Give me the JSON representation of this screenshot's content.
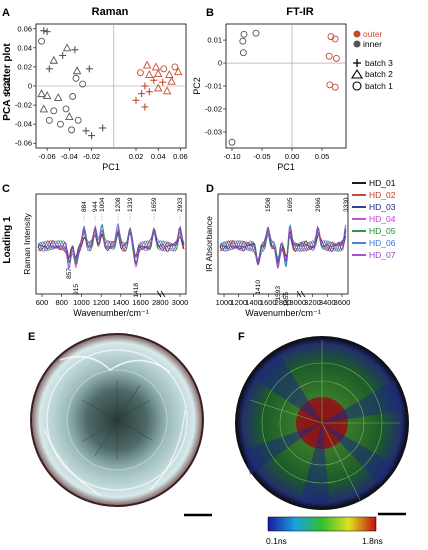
{
  "panels": {
    "A": "A",
    "B": "B",
    "C": "C",
    "D": "D",
    "E": "E",
    "F": "F"
  },
  "titles": {
    "raman": "Raman",
    "ftir": "FT-IR"
  },
  "row_labels": {
    "pca": "PCA scatter plot",
    "loading": "Loading 1"
  },
  "legend_pca": {
    "outer": "outer",
    "inner": "inner",
    "batch3": "batch 3",
    "batch2": "batch 2",
    "batch1": "batch 1",
    "outer_color": "#c8492e",
    "inner_color": "#555555"
  },
  "legend_lines": [
    {
      "name": "HD_01",
      "color": "#000000"
    },
    {
      "name": "HD_02",
      "color": "#c0392b"
    },
    {
      "name": "HD_03",
      "color": "#1f2a8a"
    },
    {
      "name": "HD_04",
      "color": "#c13cd8"
    },
    {
      "name": "HD_05",
      "color": "#1e8c2a"
    },
    {
      "name": "HD_06",
      "color": "#3a6fd8"
    },
    {
      "name": "HD_07",
      "color": "#9a3ec9"
    }
  ],
  "colorbar": {
    "min": "0.1ns",
    "max": "1.8ns"
  },
  "chart_data": [
    {
      "id": "A",
      "type": "scatter",
      "xlabel": "PC1",
      "ylabel": "PC2",
      "xlim": [
        -0.07,
        0.065
      ],
      "ylim": [
        -0.065,
        0.065
      ],
      "xticks": [
        "-0.06",
        "-0.04",
        "-0.02",
        "0.02",
        "0.04",
        "0.06"
      ],
      "yticks": [
        "0.06",
        "0.04",
        "0.02",
        "0",
        "-0.02",
        "-0.04",
        "-0.06"
      ],
      "xtick_values": [
        -0.06,
        -0.04,
        -0.02,
        0.02,
        0.04,
        0.06
      ],
      "ytick_values": [
        0.06,
        0.04,
        0.02,
        0,
        -0.02,
        -0.04,
        -0.06
      ],
      "points": [
        {
          "x": -0.063,
          "y": 0.058,
          "s": "plus",
          "c": "inner"
        },
        {
          "x": -0.06,
          "y": 0.057,
          "s": "plus",
          "c": "inner"
        },
        {
          "x": -0.065,
          "y": 0.047,
          "s": "circle",
          "c": "inner"
        },
        {
          "x": -0.042,
          "y": 0.04,
          "s": "tri",
          "c": "inner"
        },
        {
          "x": -0.046,
          "y": 0.032,
          "s": "plus",
          "c": "inner"
        },
        {
          "x": -0.035,
          "y": 0.038,
          "s": "plus",
          "c": "inner"
        },
        {
          "x": -0.054,
          "y": 0.027,
          "s": "tri",
          "c": "inner"
        },
        {
          "x": -0.058,
          "y": 0.018,
          "s": "plus",
          "c": "inner"
        },
        {
          "x": -0.022,
          "y": 0.018,
          "s": "plus",
          "c": "inner"
        },
        {
          "x": -0.033,
          "y": 0.016,
          "s": "tri",
          "c": "inner"
        },
        {
          "x": -0.034,
          "y": 0.008,
          "s": "circle",
          "c": "inner"
        },
        {
          "x": -0.028,
          "y": 0.002,
          "s": "circle",
          "c": "inner"
        },
        {
          "x": -0.065,
          "y": -0.008,
          "s": "tri",
          "c": "inner"
        },
        {
          "x": -0.06,
          "y": -0.01,
          "s": "tri",
          "c": "inner"
        },
        {
          "x": -0.05,
          "y": -0.012,
          "s": "tri",
          "c": "inner"
        },
        {
          "x": -0.037,
          "y": -0.011,
          "s": "circle",
          "c": "inner"
        },
        {
          "x": -0.063,
          "y": -0.024,
          "s": "tri",
          "c": "inner"
        },
        {
          "x": -0.054,
          "y": -0.026,
          "s": "circle",
          "c": "inner"
        },
        {
          "x": -0.043,
          "y": -0.024,
          "s": "circle",
          "c": "inner"
        },
        {
          "x": -0.04,
          "y": -0.032,
          "s": "tri",
          "c": "inner"
        },
        {
          "x": -0.058,
          "y": -0.036,
          "s": "circle",
          "c": "inner"
        },
        {
          "x": -0.048,
          "y": -0.04,
          "s": "circle",
          "c": "inner"
        },
        {
          "x": -0.032,
          "y": -0.036,
          "s": "circle",
          "c": "inner"
        },
        {
          "x": -0.025,
          "y": -0.047,
          "s": "plus",
          "c": "inner"
        },
        {
          "x": -0.02,
          "y": -0.052,
          "s": "plus",
          "c": "inner"
        },
        {
          "x": -0.01,
          "y": -0.044,
          "s": "plus",
          "c": "inner"
        },
        {
          "x": -0.038,
          "y": -0.046,
          "s": "circle",
          "c": "inner"
        },
        {
          "x": 0.03,
          "y": 0.022,
          "s": "tri",
          "c": "outer"
        },
        {
          "x": 0.038,
          "y": 0.02,
          "s": "tri",
          "c": "outer"
        },
        {
          "x": 0.045,
          "y": 0.018,
          "s": "circle",
          "c": "outer"
        },
        {
          "x": 0.055,
          "y": 0.02,
          "s": "circle",
          "c": "outer"
        },
        {
          "x": 0.024,
          "y": 0.014,
          "s": "circle",
          "c": "outer"
        },
        {
          "x": 0.032,
          "y": 0.012,
          "s": "tri",
          "c": "outer"
        },
        {
          "x": 0.04,
          "y": 0.013,
          "s": "tri",
          "c": "outer"
        },
        {
          "x": 0.05,
          "y": 0.012,
          "s": "tri",
          "c": "outer"
        },
        {
          "x": 0.058,
          "y": 0.015,
          "s": "tri",
          "c": "outer"
        },
        {
          "x": 0.036,
          "y": 0.006,
          "s": "plus",
          "c": "outer"
        },
        {
          "x": 0.044,
          "y": 0.004,
          "s": "plus",
          "c": "outer"
        },
        {
          "x": 0.052,
          "y": 0.005,
          "s": "tri",
          "c": "outer"
        },
        {
          "x": 0.028,
          "y": 0.0,
          "s": "plus",
          "c": "outer"
        },
        {
          "x": 0.04,
          "y": -0.002,
          "s": "tri",
          "c": "outer"
        },
        {
          "x": 0.025,
          "y": -0.008,
          "s": "plus",
          "c": "outer"
        },
        {
          "x": 0.032,
          "y": -0.006,
          "s": "plus",
          "c": "outer"
        },
        {
          "x": 0.048,
          "y": -0.005,
          "s": "tri",
          "c": "outer"
        },
        {
          "x": 0.02,
          "y": -0.015,
          "s": "plus",
          "c": "outer"
        },
        {
          "x": 0.028,
          "y": -0.022,
          "s": "plus",
          "c": "outer"
        }
      ]
    },
    {
      "id": "B",
      "type": "scatter",
      "xlabel": "PC1",
      "ylabel": "PC2",
      "xlim": [
        -0.11,
        0.09
      ],
      "ylim": [
        -0.037,
        0.017
      ],
      "xticks": [
        "-0.10",
        "-0.05",
        "0.00",
        "0.05"
      ],
      "yticks": [
        "0.01",
        "0",
        "-0.01",
        "-0.02",
        "-0.03"
      ],
      "xtick_values": [
        -0.1,
        -0.05,
        0.0,
        0.05
      ],
      "ytick_values": [
        0.01,
        0,
        -0.01,
        -0.02,
        -0.03
      ],
      "points": [
        {
          "x": -0.08,
          "y": 0.0125,
          "s": "circle",
          "c": "inner"
        },
        {
          "x": -0.06,
          "y": 0.013,
          "s": "circle",
          "c": "inner"
        },
        {
          "x": -0.082,
          "y": 0.0095,
          "s": "circle",
          "c": "inner"
        },
        {
          "x": -0.081,
          "y": 0.0045,
          "s": "circle",
          "c": "inner"
        },
        {
          "x": -0.1,
          "y": -0.0345,
          "s": "circle",
          "c": "inner"
        },
        {
          "x": 0.065,
          "y": 0.0115,
          "s": "circle",
          "c": "outer"
        },
        {
          "x": 0.072,
          "y": 0.0105,
          "s": "circle",
          "c": "outer"
        },
        {
          "x": 0.062,
          "y": 0.003,
          "s": "circle",
          "c": "outer"
        },
        {
          "x": 0.074,
          "y": 0.002,
          "s": "circle",
          "c": "outer"
        },
        {
          "x": 0.063,
          "y": -0.0095,
          "s": "circle",
          "c": "outer"
        },
        {
          "x": 0.072,
          "y": -0.0105,
          "s": "circle",
          "c": "outer"
        }
      ]
    },
    {
      "id": "C",
      "type": "line",
      "xlabel": "Wavenumber/cm⁻¹",
      "ylabel": "Raman Intensity",
      "xticks": [
        "600",
        "800",
        "1000",
        "1200",
        "1400",
        "1600",
        "2800",
        "3000"
      ],
      "peak_labels_up": [
        "884",
        "944",
        "1004",
        "1208",
        "1319",
        "1659",
        "2933"
      ],
      "peak_labels_down": [
        "857",
        "915",
        "1418"
      ],
      "peak_positions": [
        884,
        944,
        1004,
        1208,
        1319,
        1659,
        2933,
        857,
        915,
        1418
      ]
    },
    {
      "id": "D",
      "type": "line",
      "xlabel": "Wavenumber/cm⁻¹",
      "ylabel": "IR Absorbance",
      "xticks": [
        "1000",
        "1200",
        "1400",
        "1600",
        "2800",
        "3000",
        "3200",
        "3400",
        "3600"
      ],
      "peak_labels_up": [
        "1508",
        "1695",
        "2966",
        "3330"
      ],
      "peak_labels_down": [
        "1410",
        "1593",
        "1655"
      ],
      "peak_positions": [
        1508,
        1695,
        2966,
        3330,
        1410,
        1593,
        1655
      ]
    }
  ]
}
